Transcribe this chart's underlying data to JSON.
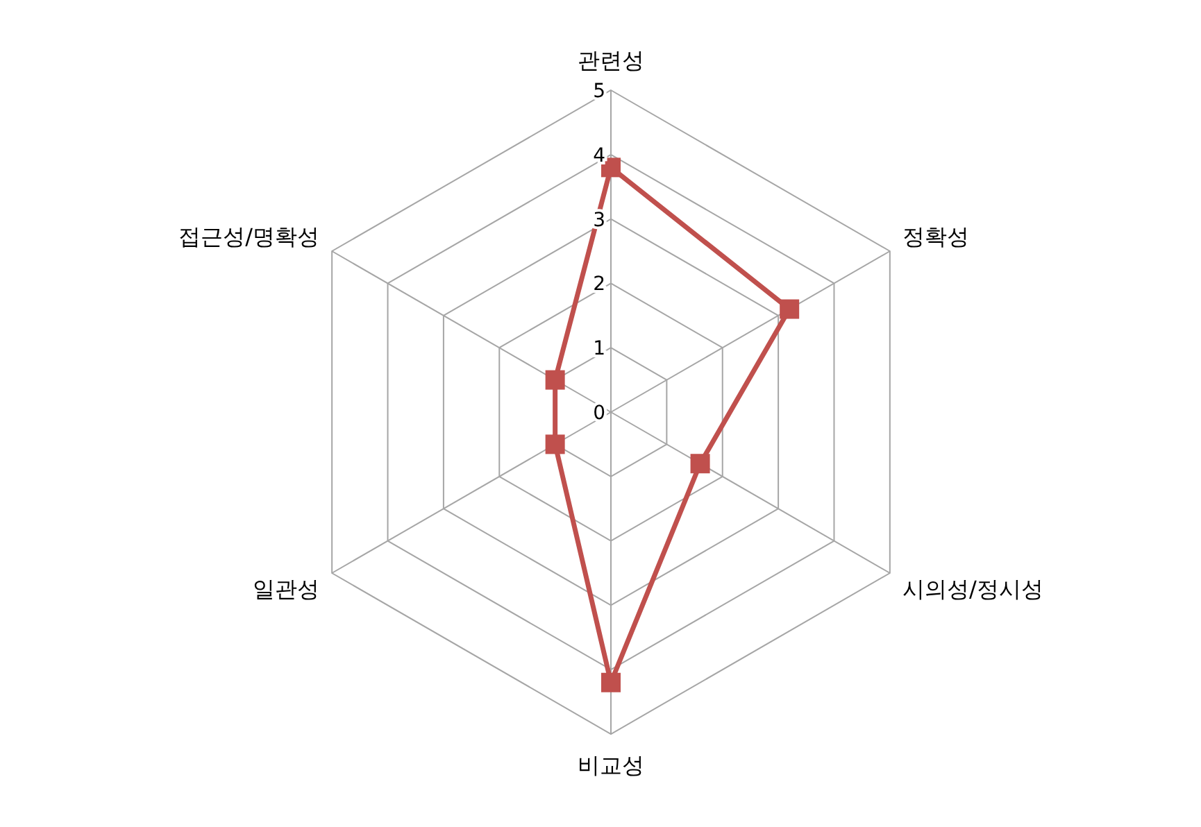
{
  "chart_data": {
    "type": "radar",
    "categories": [
      "관련성",
      "정확성",
      "시의성/정시성",
      "비교성",
      "일관성",
      "접근성/명확성"
    ],
    "series": [
      {
        "color": "#c0504d",
        "values": [
          3.8,
          3.2,
          1.6,
          4.2,
          1.0,
          1.0
        ]
      }
    ],
    "ylim": [
      0,
      5
    ],
    "yticks": [
      0,
      1,
      2,
      3,
      4,
      5
    ],
    "marker": "square",
    "grid": true,
    "legend": false
  }
}
